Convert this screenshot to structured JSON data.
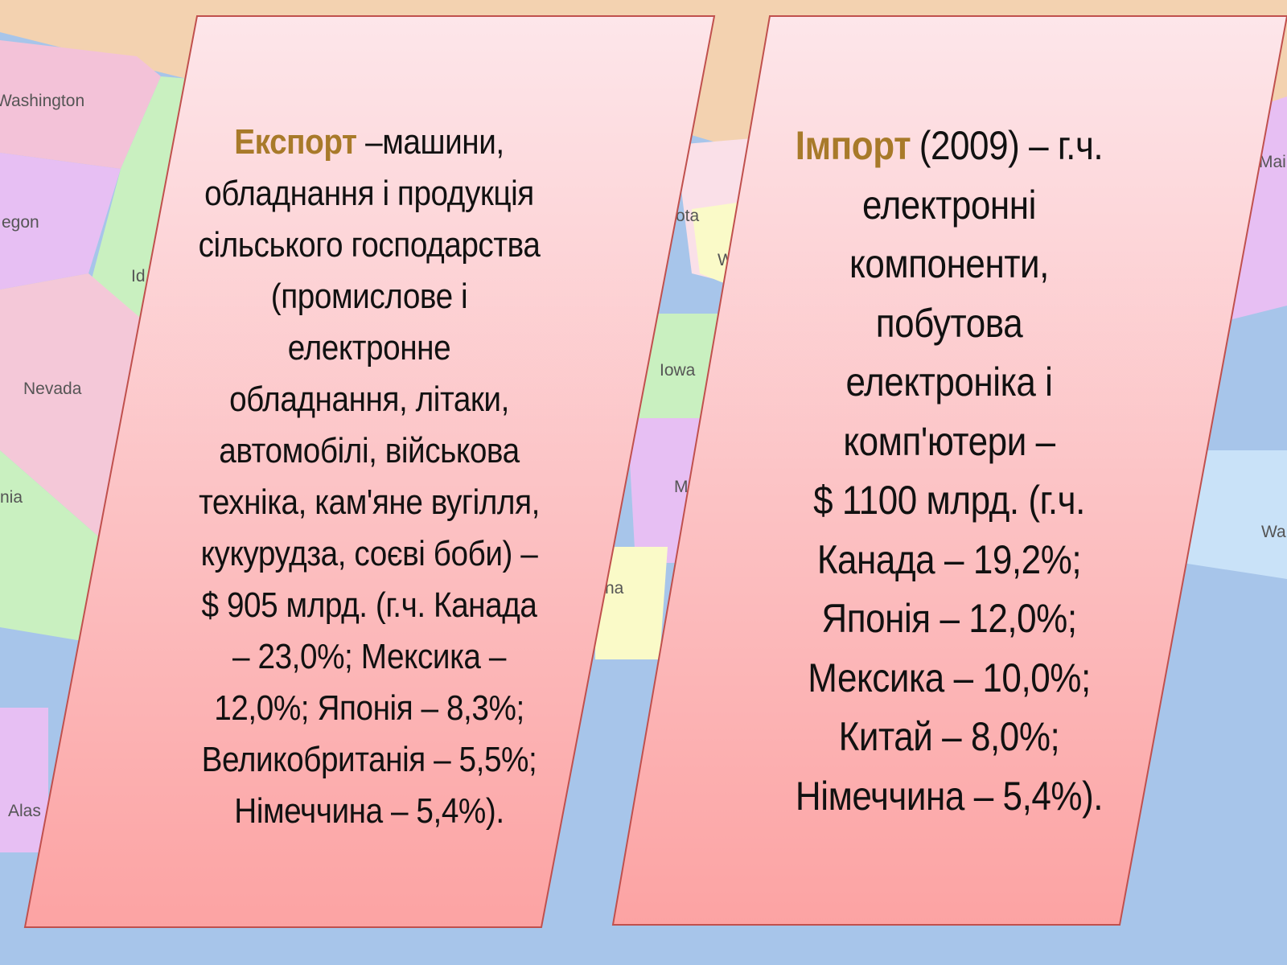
{
  "map_labels": [
    "Washington",
    "egon",
    "Nevada",
    "nia",
    "Alas",
    "Id",
    "ota",
    "W",
    "Iowa",
    "Mi",
    "na",
    "Mai",
    "Wa"
  ],
  "export": {
    "keyword": "Експорт",
    "lines": [
      "–машини,",
      "обладнання і продукція",
      "сільського господарства",
      "(промислове і",
      "електронне",
      "обладнання, літаки,",
      "автомобілі, військова",
      "техніка, кам'яне вугілля,",
      "кукурудза, соєві боби) –",
      "$ 905 млрд. (г.ч. Канада",
      "– 23,0%; Мексика –",
      "12,0%; Японія – 8,3%;",
      "Великобританія – 5,5%;",
      "Німеччина – 5,4%)."
    ]
  },
  "import": {
    "keyword": "Імпорт",
    "lines": [
      "(2009) – г.ч.",
      "електронні",
      "компоненти,",
      "побутова",
      "електроніка і",
      "комп'ютери –",
      "$ 1100 млрд. (г.ч.",
      "Канада – 19,2%;",
      "Японія – 12,0%;",
      "Мексика – 10,0%;",
      "Китай – 8,0%;",
      "Німеччина – 5,4%)."
    ]
  }
}
